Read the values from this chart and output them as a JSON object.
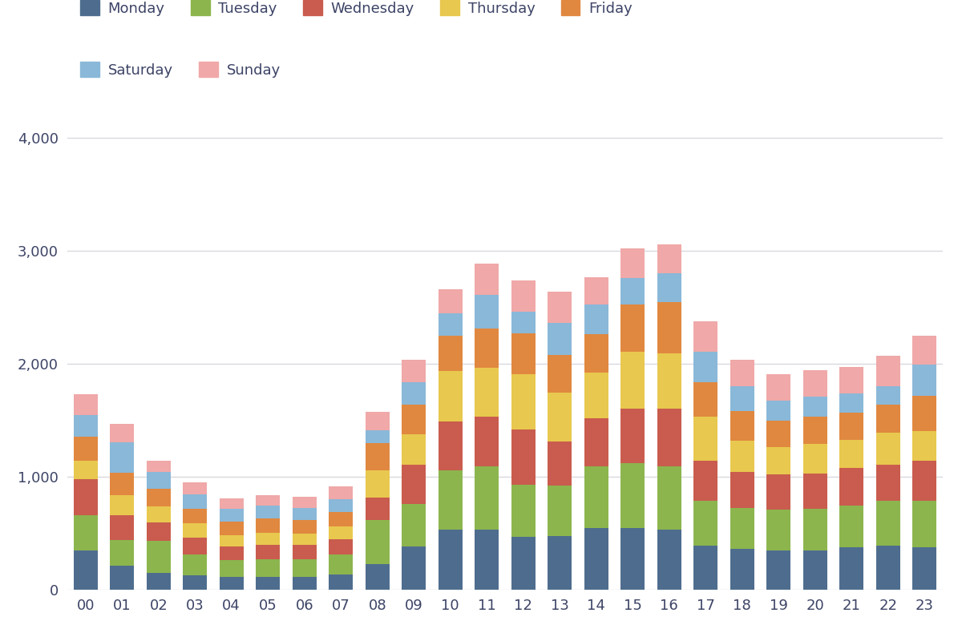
{
  "hours": [
    "00",
    "01",
    "02",
    "03",
    "04",
    "05",
    "06",
    "07",
    "08",
    "09",
    "10",
    "11",
    "12",
    "13",
    "14",
    "15",
    "16",
    "17",
    "18",
    "19",
    "20",
    "21",
    "22",
    "23"
  ],
  "days": [
    "Monday",
    "Tuesday",
    "Wednesday",
    "Thursday",
    "Friday",
    "Saturday",
    "Sunday"
  ],
  "colors": [
    "#4e6d8e",
    "#8cb54e",
    "#c95c4e",
    "#e8c84e",
    "#e08840",
    "#8ab8d8",
    "#f0a8a8"
  ],
  "data": {
    "Monday": [
      350,
      210,
      150,
      125,
      110,
      115,
      115,
      135,
      225,
      380,
      530,
      530,
      470,
      475,
      545,
      545,
      535,
      390,
      365,
      350,
      350,
      375,
      390,
      375
    ],
    "Tuesday": [
      310,
      230,
      280,
      190,
      155,
      155,
      155,
      175,
      390,
      380,
      530,
      560,
      460,
      445,
      545,
      575,
      555,
      395,
      360,
      360,
      370,
      370,
      395,
      415
    ],
    "Wednesday": [
      320,
      220,
      165,
      145,
      120,
      130,
      125,
      140,
      200,
      350,
      430,
      440,
      490,
      390,
      430,
      480,
      510,
      360,
      320,
      310,
      310,
      330,
      325,
      350
    ],
    "Thursday": [
      165,
      175,
      145,
      130,
      100,
      105,
      100,
      110,
      240,
      265,
      450,
      435,
      490,
      435,
      405,
      510,
      490,
      390,
      275,
      245,
      260,
      250,
      280,
      265
    ],
    "Friday": [
      210,
      200,
      155,
      130,
      115,
      125,
      120,
      130,
      240,
      265,
      310,
      350,
      360,
      335,
      340,
      415,
      455,
      305,
      265,
      235,
      240,
      245,
      250,
      310
    ],
    "Saturday": [
      190,
      270,
      150,
      125,
      115,
      115,
      110,
      115,
      120,
      195,
      195,
      295,
      190,
      285,
      260,
      235,
      260,
      270,
      215,
      175,
      180,
      170,
      165,
      280
    ],
    "Sunday": [
      185,
      165,
      95,
      105,
      95,
      95,
      95,
      110,
      160,
      200,
      215,
      280,
      280,
      275,
      245,
      265,
      255,
      265,
      235,
      235,
      235,
      235,
      265,
      255
    ]
  },
  "ylim": [
    0,
    4200
  ],
  "yticks": [
    0,
    1000,
    2000,
    3000,
    4000
  ],
  "bg_color": "#ffffff",
  "grid_color": "#d8d8e0",
  "text_color": "#3d4466"
}
